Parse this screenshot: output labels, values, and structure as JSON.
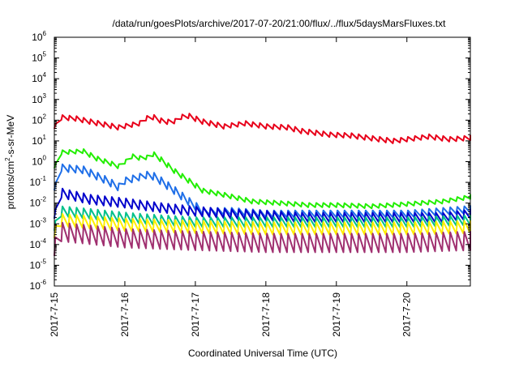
{
  "chart_data": {
    "type": "line",
    "title": "/data/run/goesPlots/archive/2017-07-20/21:00/flux/../flux/5daysMarsFluxes.txt",
    "xlabel": "Coordinated Universal Time (UTC)",
    "ylabel_base": "protons/cm",
    "ylabel_sup": "2",
    "ylabel_rest": "-s-sr-MeV",
    "y_scale": "log",
    "ylim": [
      1e-06,
      1000000.0
    ],
    "xlim": [
      0,
      5.9
    ],
    "y_ticks": [
      {
        "base": "10",
        "exp": "-6",
        "v": -6
      },
      {
        "base": "10",
        "exp": "-5",
        "v": -5
      },
      {
        "base": "10",
        "exp": "-4",
        "v": -4
      },
      {
        "base": "10",
        "exp": "-3",
        "v": -3
      },
      {
        "base": "10",
        "exp": "-2",
        "v": -2
      },
      {
        "base": "10",
        "exp": "-1",
        "v": -1
      },
      {
        "base": "10",
        "exp": "0",
        "v": 0
      },
      {
        "base": "10",
        "exp": "1",
        "v": 1
      },
      {
        "base": "10",
        "exp": "2",
        "v": 2
      },
      {
        "base": "10",
        "exp": "3",
        "v": 3
      },
      {
        "base": "10",
        "exp": "4",
        "v": 4
      },
      {
        "base": "10",
        "exp": "5",
        "v": 5
      },
      {
        "base": "10",
        "exp": "6",
        "v": 6
      }
    ],
    "x_ticks": [
      {
        "label": "2017-7-15",
        "v": 0
      },
      {
        "label": "2017-7-16",
        "v": 1
      },
      {
        "label": "2017-7-17",
        "v": 2
      },
      {
        "label": "2017-7-18",
        "v": 3
      },
      {
        "label": "2017-7-19",
        "v": 4
      },
      {
        "label": "2017-7-20",
        "v": 5
      }
    ],
    "grid": false,
    "series": [
      {
        "color": "#e8001a",
        "lower": 0,
        "points": [
          [
            0,
            50
          ],
          [
            0.05,
            140
          ],
          [
            0.3,
            120
          ],
          [
            0.5,
            85
          ],
          [
            0.9,
            45
          ],
          [
            1.2,
            70
          ],
          [
            1.35,
            165
          ],
          [
            1.55,
            80
          ],
          [
            1.7,
            90
          ],
          [
            1.8,
            145
          ],
          [
            1.9,
            160
          ],
          [
            2.1,
            85
          ],
          [
            2.4,
            50
          ],
          [
            2.7,
            70
          ],
          [
            3.0,
            50
          ],
          [
            3.3,
            45
          ],
          [
            3.5,
            30
          ],
          [
            3.9,
            20
          ],
          [
            4.2,
            18
          ],
          [
            4.6,
            12
          ],
          [
            4.8,
            10
          ],
          [
            5.0,
            12
          ],
          [
            5.3,
            16
          ],
          [
            5.6,
            12
          ],
          [
            5.9,
            14
          ]
        ],
        "period": 0.1,
        "spike": 1.7
      },
      {
        "color": "#22ee00",
        "lower": 0.2,
        "points": [
          [
            0,
            0.6
          ],
          [
            0.1,
            2.8
          ],
          [
            0.4,
            3.2
          ],
          [
            0.6,
            1.4
          ],
          [
            0.9,
            0.6
          ],
          [
            1.0,
            1.0
          ],
          [
            1.05,
            2.0
          ],
          [
            1.2,
            1.5
          ],
          [
            1.3,
            1.6
          ],
          [
            1.35,
            3.0
          ],
          [
            1.5,
            1.3
          ],
          [
            1.7,
            0.35
          ],
          [
            1.9,
            0.12
          ],
          [
            2.1,
            0.04
          ],
          [
            2.4,
            0.025
          ],
          [
            2.8,
            0.012
          ],
          [
            3.2,
            0.01
          ],
          [
            3.6,
            0.008
          ],
          [
            4.0,
            0.008
          ],
          [
            4.5,
            0.007
          ],
          [
            5.0,
            0.009
          ],
          [
            5.5,
            0.012
          ],
          [
            5.9,
            0.02
          ]
        ],
        "period": 0.1,
        "spike": 1.6
      },
      {
        "color": "#1f6fe8",
        "lower": 0.05,
        "points": [
          [
            0,
            0.06
          ],
          [
            0.1,
            0.5
          ],
          [
            0.4,
            0.4
          ],
          [
            0.7,
            0.14
          ],
          [
            0.9,
            0.06
          ],
          [
            1.0,
            0.12
          ],
          [
            1.2,
            0.18
          ],
          [
            1.35,
            0.25
          ],
          [
            1.5,
            0.12
          ],
          [
            1.7,
            0.04
          ],
          [
            1.9,
            0.012
          ],
          [
            2.1,
            0.004
          ],
          [
            2.5,
            0.004
          ],
          [
            3.0,
            0.003
          ],
          [
            3.5,
            0.003
          ],
          [
            4.0,
            0.003
          ],
          [
            4.5,
            0.003
          ],
          [
            5.0,
            0.003
          ],
          [
            5.5,
            0.004
          ],
          [
            5.9,
            0.005
          ]
        ],
        "period": 0.1,
        "spike": 2.2
      },
      {
        "color": "#0000cc",
        "lower": 0.01,
        "points": [
          [
            0,
            0.003
          ],
          [
            0.1,
            0.03
          ],
          [
            0.5,
            0.015
          ],
          [
            1.0,
            0.01
          ],
          [
            1.5,
            0.006
          ],
          [
            2.0,
            0.004
          ],
          [
            2.5,
            0.003
          ],
          [
            3.0,
            0.0025
          ],
          [
            3.5,
            0.002
          ],
          [
            4.0,
            0.002
          ],
          [
            4.5,
            0.002
          ],
          [
            5.0,
            0.002
          ],
          [
            5.5,
            0.002
          ],
          [
            5.9,
            0.003
          ]
        ],
        "period": 0.1,
        "spike": 2.8
      },
      {
        "color": "#00c08a",
        "lower": 0.001,
        "points": [
          [
            0,
            0.0008
          ],
          [
            0.1,
            0.004
          ],
          [
            0.5,
            0.003
          ],
          [
            1.0,
            0.002
          ],
          [
            1.5,
            0.0015
          ],
          [
            2.0,
            0.0012
          ],
          [
            3.0,
            0.0012
          ],
          [
            4.0,
            0.0012
          ],
          [
            5.0,
            0.0012
          ],
          [
            5.9,
            0.0015
          ]
        ],
        "period": 0.1,
        "spike": 3.0
      },
      {
        "color": "#ffee00",
        "lower": 0.0001,
        "points": [
          [
            0,
            0.0004
          ],
          [
            0.1,
            0.0015
          ],
          [
            1.0,
            0.0009
          ],
          [
            2.0,
            0.0007
          ],
          [
            3.0,
            0.0006
          ],
          [
            4.0,
            0.0006
          ],
          [
            5.0,
            0.0006
          ],
          [
            5.9,
            0.0007
          ]
        ],
        "period": 0.1,
        "spike": 4.0
      },
      {
        "color": "#a03070",
        "lower": 1e-05,
        "points": [
          [
            0,
            8e-05
          ],
          [
            0.1,
            0.0004
          ],
          [
            1.0,
            0.0002
          ],
          [
            2.0,
            0.00015
          ],
          [
            3.0,
            0.00012
          ],
          [
            4.0,
            0.00012
          ],
          [
            5.0,
            0.00012
          ],
          [
            5.9,
            0.00015
          ]
        ],
        "period": 0.1,
        "spike": 8.0
      }
    ]
  }
}
